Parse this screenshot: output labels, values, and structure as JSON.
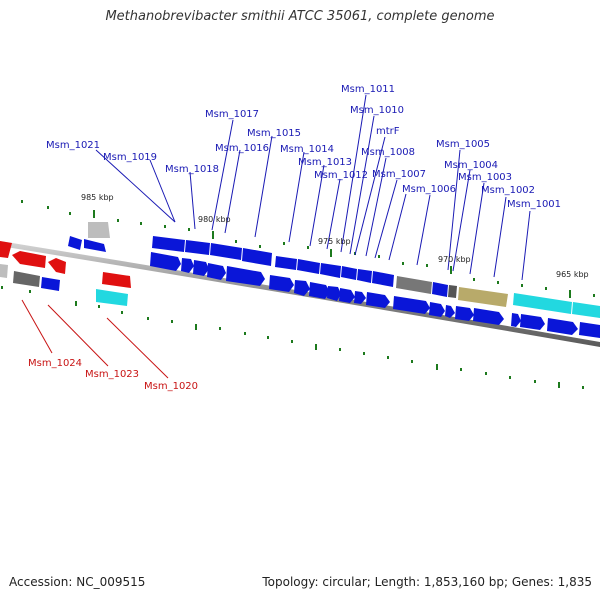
{
  "title": "Methanobrevibacter smithii ATCC 35061, complete genome",
  "footer": {
    "accession": "Accession: NC_009515",
    "topology": "Topology: circular; Length: 1,853,160 bp; Genes: 1,835"
  },
  "ticks": [
    "985 kbp",
    "980 kbp",
    "975 kbp",
    "970 kbp",
    "965 kbp"
  ],
  "colors": {
    "gene_blue": "#0a16d8",
    "gene_red": "#e01010",
    "gene_gray": "#7a7a7a",
    "gene_light_gray": "#bdbdbd",
    "gene_cyan": "#22d8e0",
    "gene_khaki": "#b8aa6a",
    "label_blue": "#1a1ab4",
    "label_red": "#c81414",
    "tick_green": "#1d7a1d"
  },
  "labels_top": [
    "Msm_1011",
    "Msm_1010",
    "mtrF",
    "Msm_1017",
    "Msm_1015",
    "Msm_1016",
    "Msm_1021",
    "Msm_1019",
    "Msm_1018",
    "Msm_1014",
    "Msm_1013",
    "Msm_1012",
    "Msm_1008",
    "Msm_1007",
    "Msm_1006",
    "Msm_1005",
    "Msm_1004",
    "Msm_1003",
    "Msm_1002",
    "Msm_1001"
  ],
  "labels_bottom": [
    "Msm_1024",
    "Msm_1023",
    "Msm_1020"
  ]
}
